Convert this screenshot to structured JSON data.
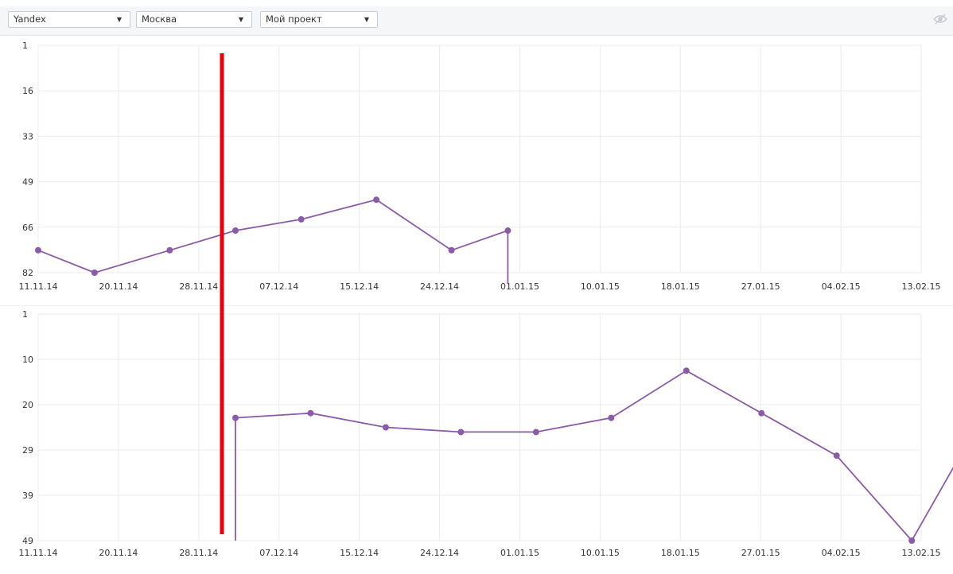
{
  "toolbar": {
    "engine_select": {
      "value": "Yandex"
    },
    "region_select": {
      "value": "Москва"
    },
    "project_select": {
      "value": "Мой проект"
    },
    "visibility_icon": "eye-slash-icon"
  },
  "colors": {
    "series": "#8b5aa8",
    "marker_line": "#e8000b",
    "grid": "#ebebeb",
    "axis_text": "#333333"
  },
  "chart_data": [
    {
      "type": "line",
      "x_tick_labels": [
        "11.11.14",
        "20.11.14",
        "28.11.14",
        "07.12.14",
        "15.12.14",
        "24.12.14",
        "01.01.15",
        "10.01.15",
        "18.01.15",
        "27.01.15",
        "04.02.15",
        "13.02.15"
      ],
      "y_tick_labels": [
        "1",
        "16",
        "33",
        "49",
        "66",
        "82"
      ],
      "y_inverted": true,
      "ylim": [
        1,
        82
      ],
      "xlim": [
        "2014-11-11",
        "2015-02-13"
      ],
      "grid": true,
      "series": [
        {
          "points": [
            {
              "date": "2014-11-11",
              "position": 74
            },
            {
              "date": "2014-11-17",
              "position": 82
            },
            {
              "date": "2014-11-25",
              "position": 74
            },
            {
              "date": "2014-12-02",
              "position": 67
            },
            {
              "date": "2014-12-09",
              "position": 63
            },
            {
              "date": "2014-12-17",
              "position": 56
            },
            {
              "date": "2014-12-25",
              "position": 74
            },
            {
              "date": "2014-12-31",
              "position": 67
            }
          ]
        }
      ]
    },
    {
      "type": "line",
      "x_tick_labels": [
        "11.11.14",
        "20.11.14",
        "28.11.14",
        "07.12.14",
        "15.12.14",
        "24.12.14",
        "01.01.15",
        "10.01.15",
        "18.01.15",
        "27.01.15",
        "04.02.15",
        "13.02.15"
      ],
      "y_tick_labels": [
        "1",
        "10",
        "20",
        "29",
        "39",
        "49"
      ],
      "y_inverted": true,
      "ylim": [
        1,
        49
      ],
      "xlim": [
        "2014-11-11",
        "2015-02-13"
      ],
      "grid": true,
      "series": [
        {
          "points": [
            {
              "date": "2014-12-02",
              "position": 23
            },
            {
              "date": "2014-12-10",
              "position": 22
            },
            {
              "date": "2014-12-18",
              "position": 25
            },
            {
              "date": "2014-12-26",
              "position": 26
            },
            {
              "date": "2015-01-03",
              "position": 26
            },
            {
              "date": "2015-01-11",
              "position": 23
            },
            {
              "date": "2015-01-19",
              "position": 13
            },
            {
              "date": "2015-01-27",
              "position": 22
            },
            {
              "date": "2015-02-04",
              "position": 31
            },
            {
              "date": "2015-02-12",
              "position": 49
            },
            {
              "date": "2015-02-20",
              "position": 21
            }
          ]
        }
      ]
    }
  ]
}
